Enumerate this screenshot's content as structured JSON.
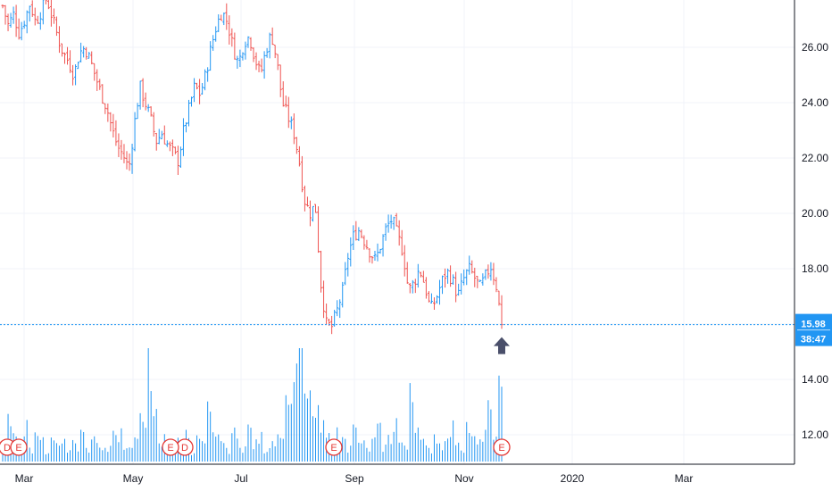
{
  "chart_data": {
    "type": "candlestick",
    "title": "",
    "xlabel": "",
    "ylabel": "",
    "ylim": [
      11.0,
      27.5
    ],
    "y_ticks": [
      26.0,
      24.0,
      22.0,
      20.0,
      18.0,
      16.0,
      14.0,
      12.0
    ],
    "y_tick_labels": [
      "26.00",
      "24.00",
      "22.00",
      "20.00",
      "18.00",
      "16.00",
      "14.00",
      "12.00"
    ],
    "x_tick_labels": [
      "Mar",
      "May",
      "Jul",
      "Sep",
      "Nov",
      "2020",
      "Mar"
    ],
    "colors": {
      "up": "#2196f3",
      "down": "#ef5350",
      "volume": "#2196f3",
      "last_price": "#2196f3",
      "event": "#e53935",
      "arrow": "#4a4f6a"
    },
    "last_price": {
      "value": 15.98,
      "label": "15.98",
      "countdown": "38:47"
    },
    "earnings_markers": [
      "E",
      "E",
      "E",
      "E",
      "E"
    ],
    "dividend_markers": [
      "D",
      "D"
    ],
    "series": [
      {
        "name": "",
        "kind": "price_path",
        "values": [
          27.5,
          26.8,
          27.2,
          26.5,
          27.0,
          27.6,
          26.9,
          27.3,
          27.8,
          27.1,
          26.4,
          25.8,
          25.5,
          25.0,
          25.8,
          26.0,
          25.5,
          24.9,
          24.3,
          23.8,
          23.0,
          22.4,
          22.1,
          21.6,
          23.2,
          24.6,
          24.0,
          23.4,
          22.6,
          22.9,
          22.5,
          22.2,
          21.9,
          23.0,
          23.8,
          24.6,
          24.3,
          25.0,
          26.0,
          26.8,
          27.3,
          26.9,
          26.0,
          25.4,
          26.2,
          26.4,
          25.6,
          25.0,
          25.9,
          26.5,
          25.5,
          24.0,
          23.5,
          23.0,
          22.0,
          20.5,
          20.0,
          20.3,
          17.5,
          16.0,
          15.9,
          16.5,
          17.2,
          18.5,
          19.2,
          19.4,
          19.0,
          18.6,
          18.3,
          18.9,
          19.5,
          19.8,
          19.2,
          18.6,
          17.2,
          17.5,
          18.0,
          17.4,
          16.5,
          16.9,
          17.5,
          17.9,
          17.6,
          17.0,
          17.6,
          18.0,
          17.7,
          17.3,
          17.7,
          18.1,
          17.4,
          15.98
        ]
      },
      {
        "name": "",
        "kind": "volume_heights",
        "values": [
          0.15,
          0.42,
          0.25,
          0.1,
          0.35,
          0.12,
          0.22,
          0.18,
          0.08,
          0.3,
          0.14,
          0.2,
          0.1,
          0.16,
          0.28,
          0.12,
          0.22,
          0.18,
          0.1,
          0.14,
          0.24,
          0.3,
          0.16,
          0.12,
          0.2,
          0.35,
          1.0,
          0.4,
          0.16,
          0.22,
          0.12,
          0.18,
          0.14,
          0.26,
          0.1,
          0.2,
          0.16,
          0.44,
          0.22,
          0.18,
          0.12,
          0.25,
          0.2,
          0.14,
          0.3,
          0.16,
          0.22,
          0.12,
          0.18,
          0.24,
          0.2,
          0.5,
          0.7,
          1.0,
          0.6,
          0.55,
          0.4,
          0.3,
          0.22,
          0.18,
          0.25,
          0.2,
          0.14,
          0.3,
          0.16,
          0.12,
          0.2,
          0.28,
          0.14,
          0.22,
          0.4,
          0.18,
          0.12,
          0.86,
          0.3,
          0.2,
          0.12,
          0.24,
          0.16,
          0.18,
          0.3,
          0.22,
          0.14,
          0.34,
          0.2,
          0.16,
          0.28,
          0.46,
          0.22,
          0.66
        ]
      }
    ],
    "annotations": [
      {
        "kind": "arrow-up",
        "near": "last-price"
      }
    ]
  }
}
